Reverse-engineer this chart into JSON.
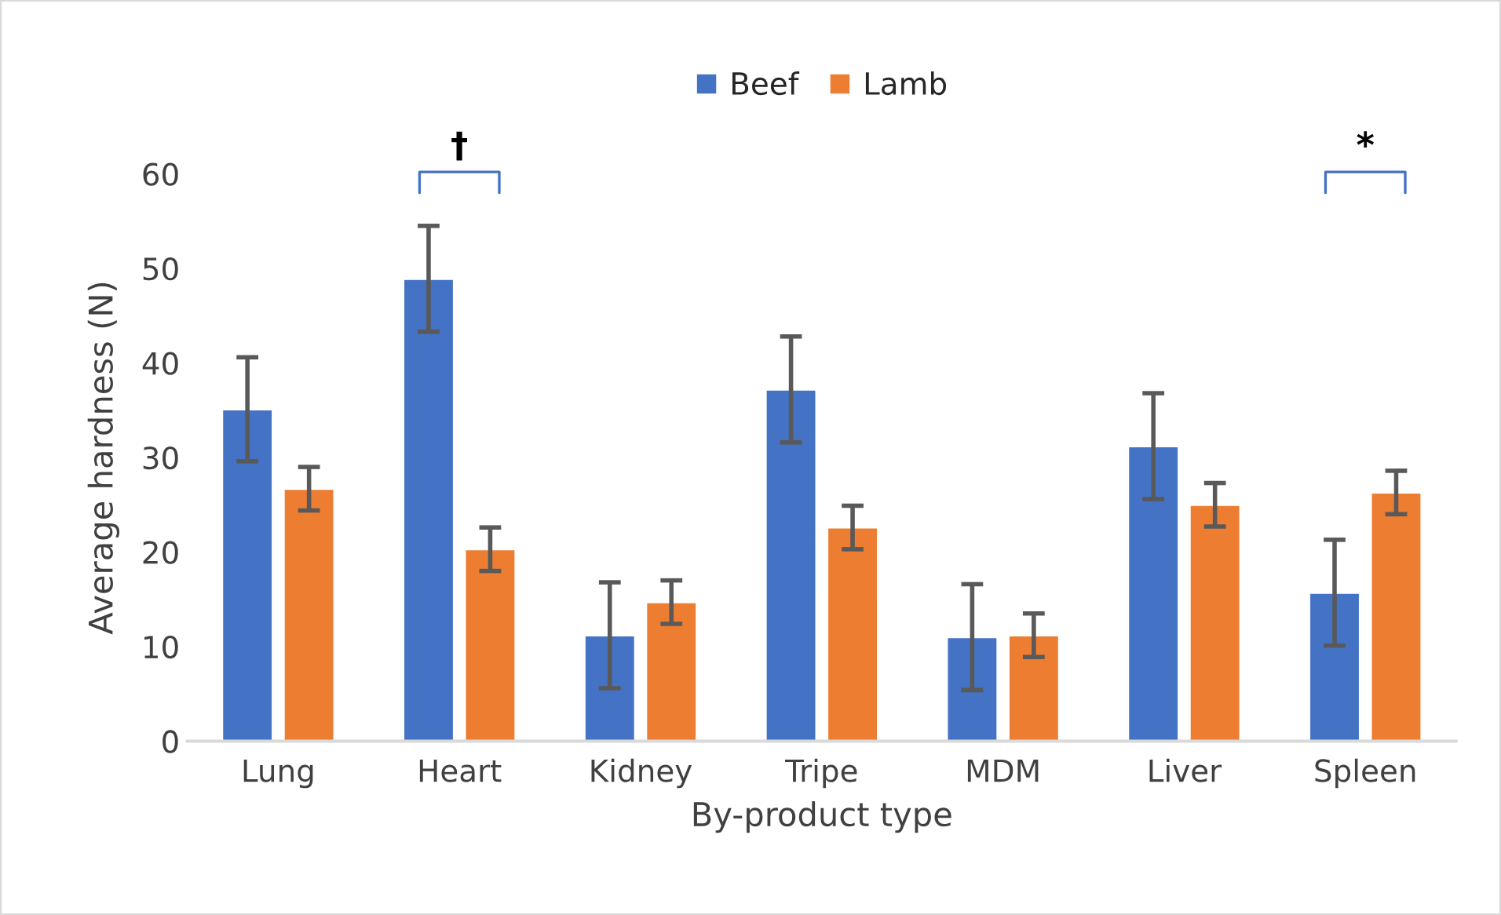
{
  "chart_data": {
    "type": "bar",
    "xlabel": "By-product type",
    "ylabel": "Average hardness (N)",
    "categories": [
      "Lung",
      "Heart",
      "Kidney",
      "Tripe",
      "MDM",
      "Liver",
      "Spleen"
    ],
    "series": [
      {
        "name": "Beef",
        "color": "#4472c4",
        "values": [
          35.1,
          48.9,
          11.2,
          37.2,
          11.0,
          31.2,
          15.7
        ],
        "errors": [
          5.5,
          5.6,
          5.6,
          5.6,
          5.6,
          5.6,
          5.6
        ]
      },
      {
        "name": "Lamb",
        "color": "#ed7d31",
        "values": [
          26.7,
          20.3,
          14.7,
          22.6,
          11.2,
          25.0,
          26.3
        ],
        "errors": [
          2.3,
          2.3,
          2.3,
          2.3,
          2.3,
          2.3,
          2.3
        ]
      }
    ],
    "ylim": [
      0,
      60
    ],
    "yticks": [
      0,
      10,
      20,
      30,
      40,
      50,
      60
    ],
    "grid": false,
    "legend": "top",
    "annotations": [
      "†",
      "*"
    ]
  }
}
